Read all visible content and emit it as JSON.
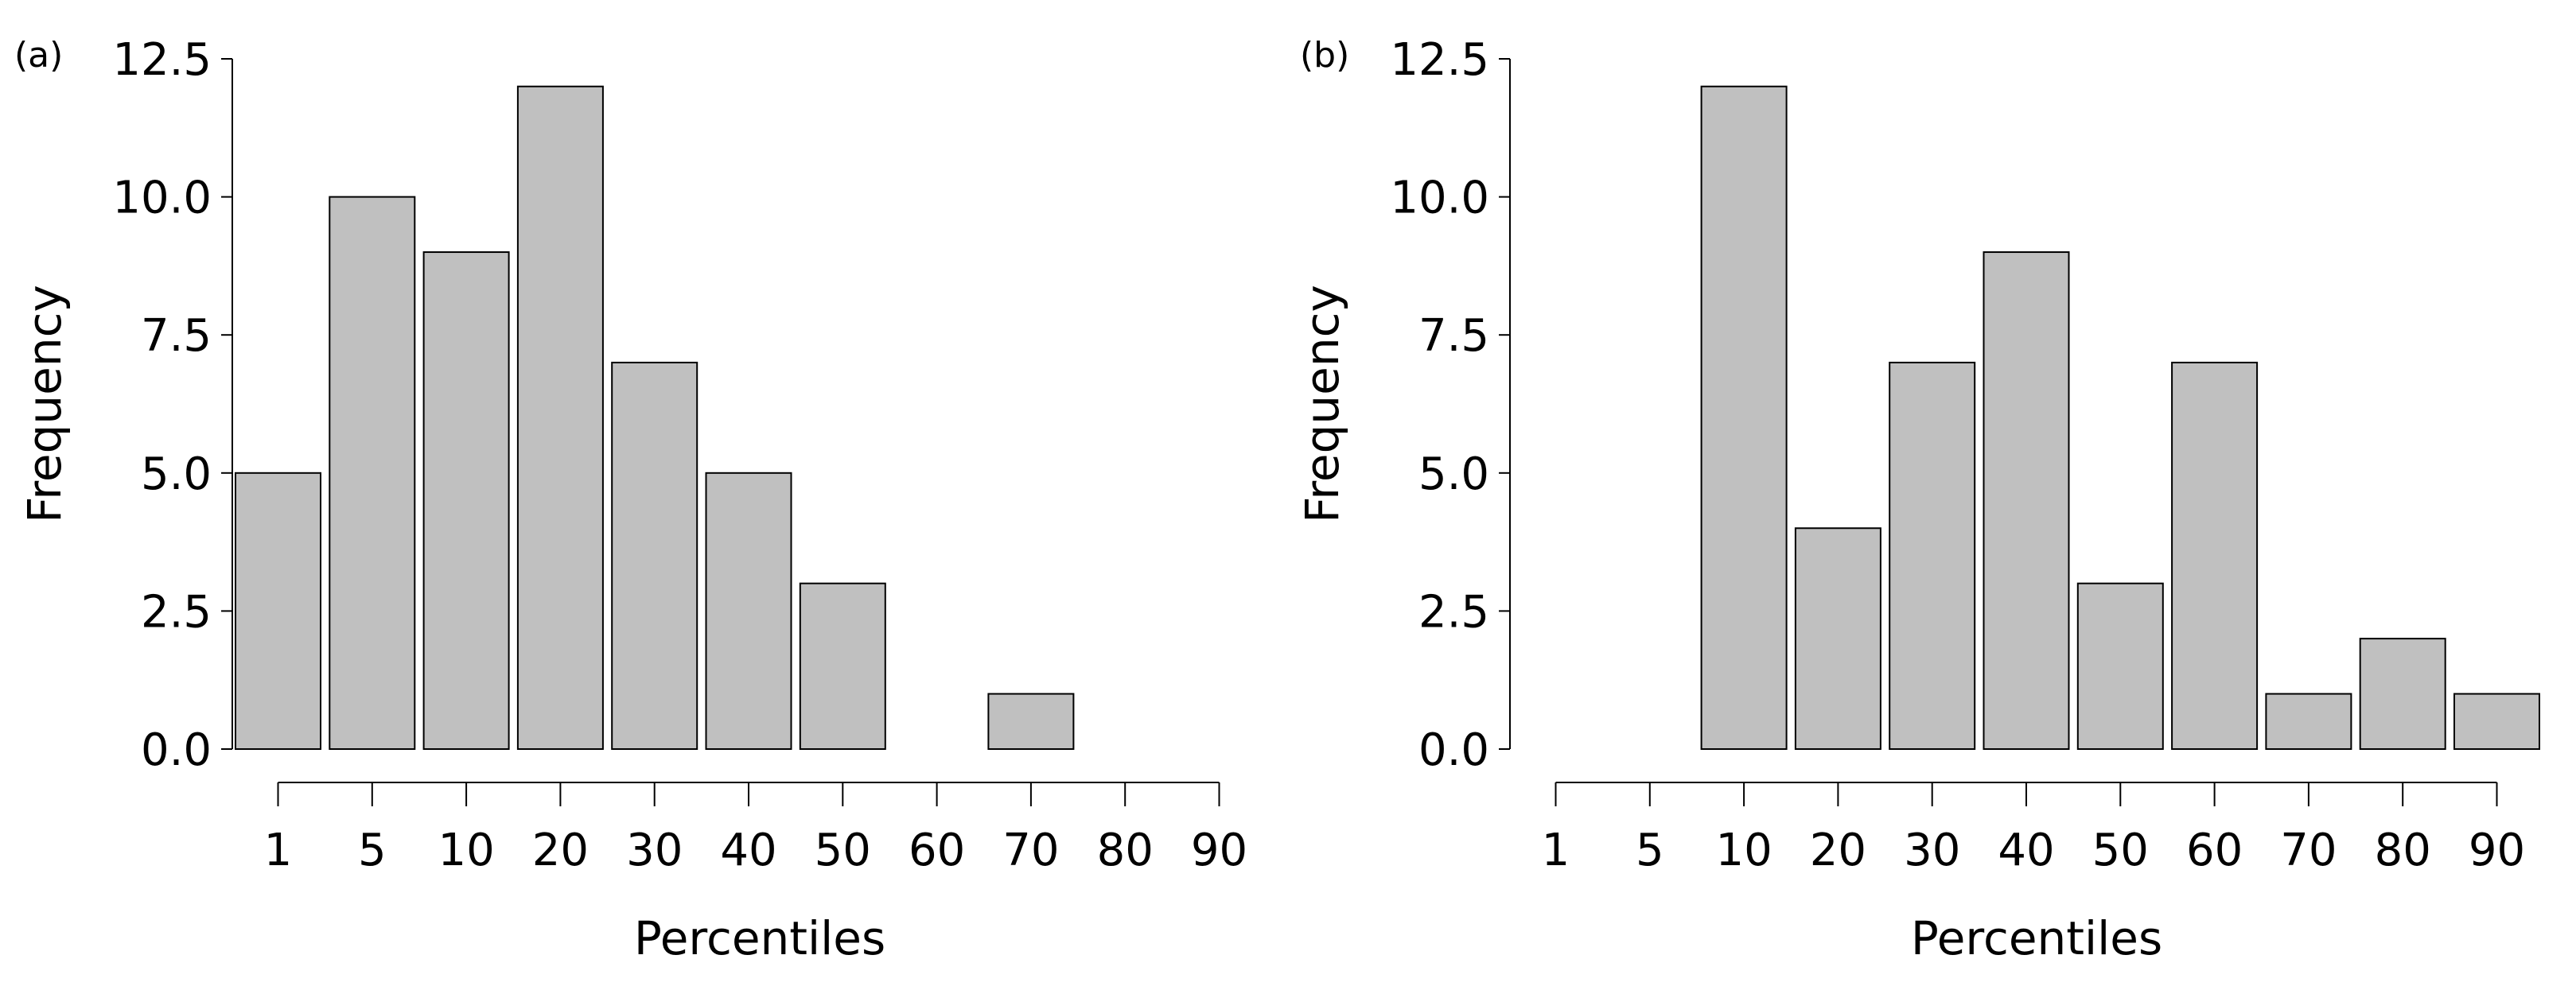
{
  "chart_data": [
    {
      "type": "bar",
      "panel_label": "(a)",
      "categories": [
        "1",
        "5",
        "10",
        "20",
        "30",
        "40",
        "50",
        "60",
        "70",
        "80",
        "90"
      ],
      "values": [
        5,
        10,
        9,
        12,
        7,
        5,
        3,
        0,
        1,
        0,
        0
      ],
      "xlabel": "Percentiles",
      "ylabel": "Frequency",
      "ylim": [
        0,
        12.5
      ],
      "yticks": [
        "0.0",
        "2.5",
        "5.0",
        "7.5",
        "10.0",
        "12.5"
      ],
      "bar_color": "#c0c0c0",
      "grid": false
    },
    {
      "type": "bar",
      "panel_label": "(b)",
      "categories": [
        "1",
        "5",
        "10",
        "20",
        "30",
        "40",
        "50",
        "60",
        "70",
        "80",
        "90"
      ],
      "values": [
        0,
        0,
        12,
        4,
        7,
        9,
        3,
        7,
        1,
        2,
        1
      ],
      "xlabel": "Percentiles",
      "ylabel": "Frequency",
      "ylim": [
        0,
        12.5
      ],
      "yticks": [
        "0.0",
        "2.5",
        "5.0",
        "7.5",
        "10.0",
        "12.5"
      ],
      "bar_color": "#c0c0c0",
      "grid": false
    }
  ]
}
